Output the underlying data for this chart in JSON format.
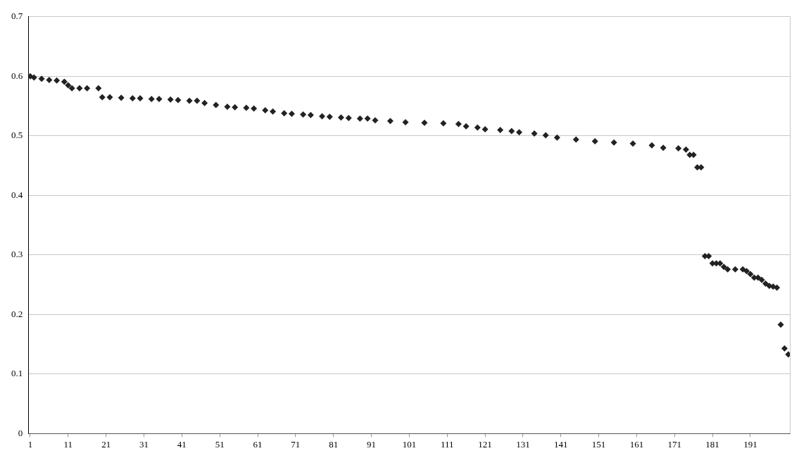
{
  "chart_data": {
    "type": "scatter",
    "marker": "diamond",
    "grid": "y",
    "legend": false,
    "xlim": [
      0.5,
      201.5
    ],
    "xticks": [
      1,
      11,
      21,
      31,
      41,
      51,
      61,
      71,
      81,
      91,
      101,
      111,
      121,
      131,
      141,
      151,
      161,
      171,
      181,
      191
    ],
    "ylim": [
      0,
      0.7
    ],
    "yticks": [
      0,
      0.1,
      0.2,
      0.3,
      0.4,
      0.5,
      0.6,
      0.7
    ],
    "series": [
      {
        "color": "#222222",
        "x": [
          1,
          2,
          4,
          6,
          8,
          10,
          11,
          12,
          14,
          16,
          19,
          20,
          22,
          25,
          28,
          30,
          33,
          35,
          38,
          40,
          43,
          45,
          47,
          50,
          53,
          55,
          58,
          60,
          63,
          65,
          68,
          70,
          73,
          75,
          78,
          80,
          83,
          85,
          88,
          90,
          92,
          96,
          100,
          105,
          110,
          114,
          116,
          119,
          121,
          125,
          128,
          130,
          134,
          137,
          140,
          145,
          150,
          155,
          160,
          165,
          168,
          172,
          174,
          175,
          176,
          177,
          178,
          179,
          180,
          181,
          182,
          183,
          184,
          185,
          187,
          189,
          190,
          191,
          192,
          193,
          194,
          195,
          196,
          197,
          198,
          199,
          200,
          201
        ],
        "values": [
          0.6,
          0.598,
          0.596,
          0.594,
          0.593,
          0.591,
          0.585,
          0.58,
          0.58,
          0.58,
          0.58,
          0.565,
          0.565,
          0.564,
          0.563,
          0.563,
          0.562,
          0.562,
          0.561,
          0.56,
          0.559,
          0.559,
          0.555,
          0.552,
          0.549,
          0.548,
          0.547,
          0.546,
          0.543,
          0.541,
          0.538,
          0.537,
          0.536,
          0.535,
          0.533,
          0.532,
          0.531,
          0.53,
          0.529,
          0.529,
          0.526,
          0.525,
          0.523,
          0.522,
          0.521,
          0.52,
          0.516,
          0.514,
          0.511,
          0.51,
          0.508,
          0.506,
          0.504,
          0.501,
          0.497,
          0.494,
          0.491,
          0.489,
          0.487,
          0.484,
          0.48,
          0.479,
          0.477,
          0.468,
          0.468,
          0.447,
          0.447,
          0.298,
          0.298,
          0.286,
          0.286,
          0.286,
          0.28,
          0.276,
          0.276,
          0.276,
          0.273,
          0.268,
          0.262,
          0.262,
          0.258,
          0.252,
          0.248,
          0.247,
          0.245,
          0.183,
          0.143,
          0.133
        ]
      }
    ]
  }
}
